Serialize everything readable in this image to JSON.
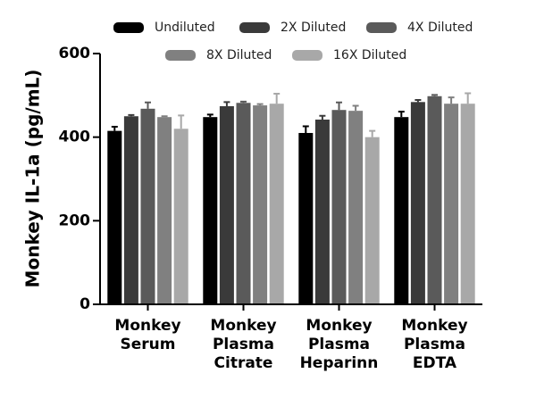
{
  "chart_data": {
    "type": "bar",
    "y_label": "Monkey IL-1a (pg/mL)",
    "categories": [
      [
        "Monkey",
        "Serum"
      ],
      [
        "Monkey",
        "Plasma",
        "Citrate"
      ],
      [
        "Monkey",
        "Plasma",
        "Heparinn"
      ],
      [
        "Monkey",
        "Plasma",
        "EDTA"
      ]
    ],
    "series": [
      {
        "name": "Undiluted",
        "color": "#000000",
        "values": [
          415,
          448,
          410,
          448
        ],
        "errors": [
          10,
          6,
          16,
          13
        ]
      },
      {
        "name": "2X Diluted",
        "color": "#3a3a3a",
        "values": [
          450,
          474,
          442,
          484
        ],
        "errors": [
          3,
          10,
          9,
          5
        ]
      },
      {
        "name": "4X Diluted",
        "color": "#5a5a5a",
        "values": [
          468,
          482,
          465,
          498
        ],
        "errors": [
          15,
          3,
          18,
          3
        ]
      },
      {
        "name": "8X Diluted",
        "color": "#808080",
        "values": [
          448,
          476,
          463,
          480
        ],
        "errors": [
          2,
          3,
          12,
          15
        ]
      },
      {
        "name": "16X Diluted",
        "color": "#a8a8a8",
        "values": [
          420,
          480,
          400,
          480
        ],
        "errors": [
          32,
          24,
          15,
          25
        ]
      }
    ],
    "ylim": [
      0,
      600
    ],
    "yticks": [
      0,
      200,
      400,
      600
    ]
  }
}
